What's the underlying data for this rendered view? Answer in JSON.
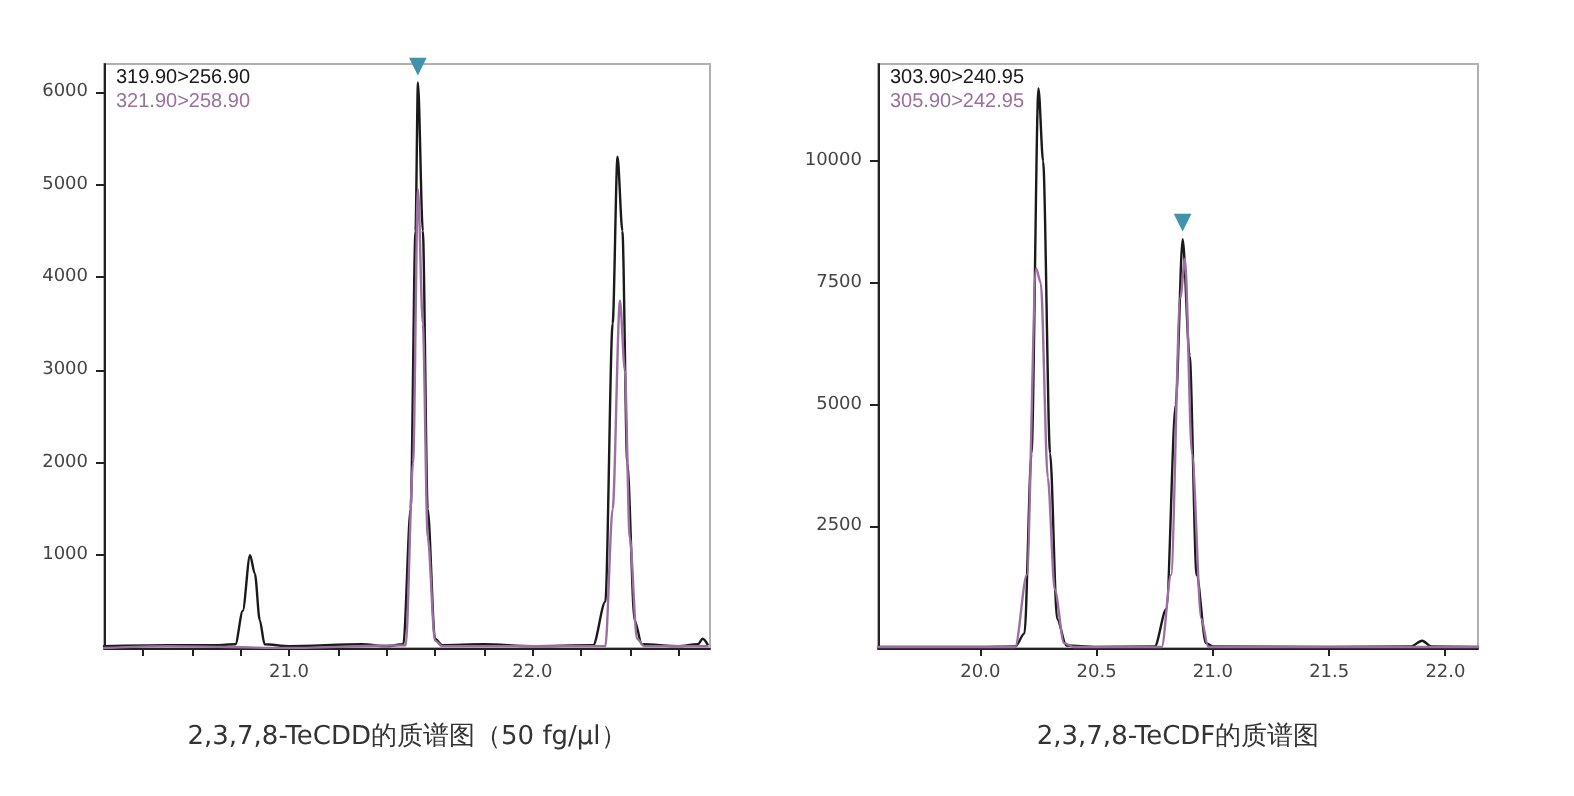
{
  "chart_data": [
    {
      "type": "line",
      "xlabel": "2,3,7,8-TeCDD的质谱图（50 fg/μl）",
      "xlim": [
        20.24,
        22.73
      ],
      "ylim": [
        0,
        6300
      ],
      "xticks": [
        {
          "value": 20.4,
          "label": null
        },
        {
          "value": 20.6,
          "label": null
        },
        {
          "value": 20.8,
          "label": null
        },
        {
          "value": 21,
          "label": "21.0"
        },
        {
          "value": 21.2,
          "label": null
        },
        {
          "value": 21.4,
          "label": null
        },
        {
          "value": 21.6,
          "label": null
        },
        {
          "value": 21.8,
          "label": null
        },
        {
          "value": 22,
          "label": "22.0"
        },
        {
          "value": 22.2,
          "label": null
        },
        {
          "value": 22.4,
          "label": null
        },
        {
          "value": 22.6,
          "label": null
        }
      ],
      "yticks": [
        1000,
        2000,
        3000,
        4000,
        5000,
        6000
      ],
      "grid": false,
      "legend": "top left",
      "marker": "none",
      "series": [
        {
          "name": "319.90>256.90",
          "color": "#1a1a1a",
          "x": [
            20.24,
            20.5,
            20.7,
            20.78,
            20.81,
            20.84,
            20.86,
            20.88,
            20.9,
            21.0,
            21.3,
            21.4,
            21.47,
            21.5,
            21.52,
            21.53,
            21.55,
            21.57,
            21.6,
            21.63,
            21.8,
            22.0,
            22.25,
            22.3,
            22.33,
            22.35,
            22.37,
            22.39,
            22.42,
            22.45,
            22.6,
            22.68,
            22.7,
            22.72
          ],
          "values": [
            20,
            30,
            30,
            40,
            400,
            1000,
            800,
            300,
            40,
            20,
            40,
            20,
            40,
            1500,
            4500,
            6100,
            4500,
            1500,
            100,
            30,
            40,
            20,
            30,
            500,
            3500,
            5300,
            4500,
            2000,
            300,
            40,
            20,
            40,
            100,
            40
          ]
        },
        {
          "name": "321.90>258.90",
          "color": "#9b6fa0",
          "x": [
            20.24,
            20.5,
            21.0,
            21.48,
            21.51,
            21.53,
            21.55,
            21.57,
            21.6,
            21.63,
            22.0,
            22.3,
            22.33,
            22.36,
            22.38,
            22.4,
            22.43,
            22.46,
            22.72
          ],
          "values": [
            0,
            20,
            0,
            30,
            2000,
            4950,
            3500,
            1200,
            80,
            20,
            20,
            20,
            1500,
            3750,
            3000,
            1200,
            100,
            20,
            20
          ]
        }
      ],
      "annotations": [
        {
          "text": "▼",
          "x": 21.53,
          "y": 6100
        }
      ]
    },
    {
      "type": "line",
      "xlabel": "2,3,7,8-TeCDF的质谱图",
      "xlim": [
        19.56,
        22.14
      ],
      "ylim": [
        0,
        12000
      ],
      "xticks": [
        {
          "value": 20,
          "label": "20.0"
        },
        {
          "value": 20.5,
          "label": "20.5"
        },
        {
          "value": 21,
          "label": "21.0"
        },
        {
          "value": 21.5,
          "label": "21.5"
        },
        {
          "value": 22,
          "label": "22.0"
        }
      ],
      "yticks": [
        2500,
        5000,
        7500,
        10000
      ],
      "grid": false,
      "legend": "top left",
      "marker": "none",
      "series": [
        {
          "name": "303.90>240.95",
          "color": "#1a1a1a",
          "x": [
            19.56,
            20.0,
            20.15,
            20.19,
            20.22,
            20.25,
            20.27,
            20.3,
            20.33,
            20.37,
            20.5,
            20.75,
            20.8,
            20.84,
            20.87,
            20.9,
            20.93,
            20.97,
            21.0,
            21.5,
            21.85,
            21.9,
            21.94,
            22.14
          ],
          "values": [
            20,
            20,
            30,
            300,
            4000,
            11500,
            10000,
            4000,
            600,
            50,
            20,
            30,
            800,
            5000,
            8400,
            6000,
            1500,
            100,
            30,
            20,
            30,
            150,
            30,
            20
          ]
        },
        {
          "name": "305.90>242.95",
          "color": "#9b6fa0",
          "x": [
            19.56,
            20.15,
            20.2,
            20.24,
            20.26,
            20.29,
            20.32,
            20.36,
            20.4,
            20.78,
            20.82,
            20.86,
            20.88,
            20.91,
            20.95,
            20.98,
            22.14
          ],
          "values": [
            20,
            20,
            1500,
            7800,
            7500,
            3500,
            1200,
            100,
            20,
            20,
            1500,
            7200,
            8000,
            4000,
            600,
            20,
            20
          ]
        }
      ],
      "annotations": [
        {
          "text": "▼",
          "x": 20.87,
          "y": 8400
        }
      ]
    }
  ]
}
